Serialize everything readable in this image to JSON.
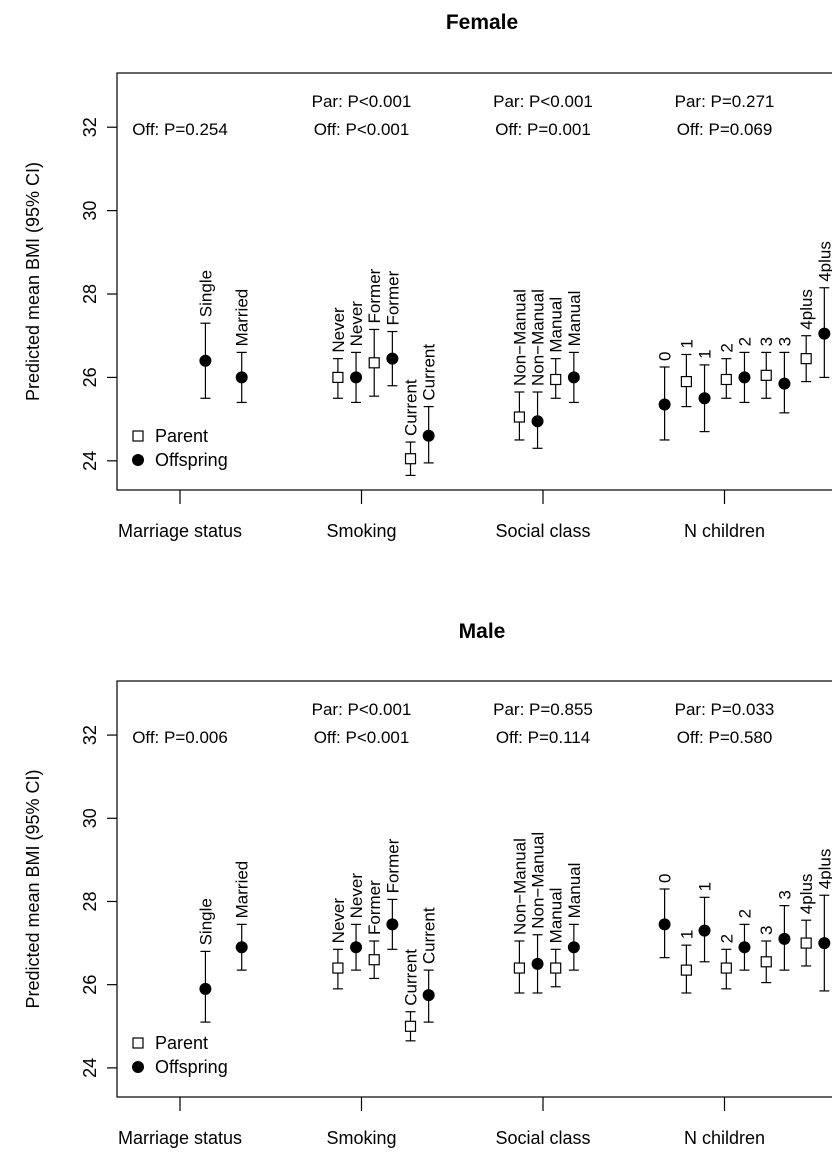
{
  "figure": {
    "ylabel": "Predicted mean BMI (95% CI)",
    "yticks": [
      "24",
      "26",
      "28",
      "30",
      "32"
    ],
    "groups": [
      "Marriage status",
      "Smoking",
      "Social class",
      "N children"
    ],
    "legend": [
      {
        "label": "Parent",
        "marker": "open-square"
      },
      {
        "label": "Offspring",
        "marker": "filled-circle"
      }
    ],
    "colors": {
      "ink": "#000000",
      "parent_fill": "#ffffff",
      "offspring_fill": "#000000"
    }
  },
  "chart_data": [
    {
      "type": "scatter",
      "title": "Female",
      "ylabel": "Predicted mean BMI (95% CI)",
      "ylim": [
        23.3,
        33.3
      ],
      "grid": false,
      "legend_position": "bottom-left",
      "groups": [
        "Marriage status",
        "Smoking",
        "Social class",
        "N children"
      ],
      "pvalues": [
        {
          "group": "Marriage status",
          "par": "",
          "off": "Off: P=0.254"
        },
        {
          "group": "Smoking",
          "par": "Par: P<0.001",
          "off": "Off: P<0.001"
        },
        {
          "group": "Social class",
          "par": "Par: P<0.001",
          "off": "Off: P=0.001"
        },
        {
          "group": "N children",
          "par": "Par: P=0.271",
          "off": "Off: P=0.069"
        }
      ],
      "points": [
        {
          "group": "Marriage status",
          "label": "Single",
          "series": "Offspring",
          "x": 1.14,
          "y": 26.4,
          "lo": 25.5,
          "hi": 27.3
        },
        {
          "group": "Marriage status",
          "label": "Married",
          "series": "Offspring",
          "x": 1.34,
          "y": 26.0,
          "lo": 25.4,
          "hi": 26.6
        },
        {
          "group": "Smoking",
          "label": "Never",
          "series": "Parent",
          "x": 1.87,
          "y": 26.0,
          "lo": 25.5,
          "hi": 26.45
        },
        {
          "group": "Smoking",
          "label": "Never",
          "series": "Offspring",
          "x": 1.97,
          "y": 26.0,
          "lo": 25.4,
          "hi": 26.6
        },
        {
          "group": "Smoking",
          "label": "Former",
          "series": "Parent",
          "x": 2.07,
          "y": 26.35,
          "lo": 25.55,
          "hi": 27.15
        },
        {
          "group": "Smoking",
          "label": "Former",
          "series": "Offspring",
          "x": 2.17,
          "y": 26.45,
          "lo": 25.8,
          "hi": 27.1
        },
        {
          "group": "Smoking",
          "label": "Current",
          "series": "Parent",
          "x": 2.27,
          "y": 24.05,
          "lo": 23.65,
          "hi": 24.45
        },
        {
          "group": "Smoking",
          "label": "Current",
          "series": "Offspring",
          "x": 2.37,
          "y": 24.6,
          "lo": 23.95,
          "hi": 25.3
        },
        {
          "group": "Social class",
          "label": "Non−Manual",
          "series": "Parent",
          "x": 2.87,
          "y": 25.05,
          "lo": 24.5,
          "hi": 25.65
        },
        {
          "group": "Social class",
          "label": "Non−Manual",
          "series": "Offspring",
          "x": 2.97,
          "y": 24.95,
          "lo": 24.3,
          "hi": 25.65
        },
        {
          "group": "Social class",
          "label": "Manual",
          "series": "Parent",
          "x": 3.07,
          "y": 25.95,
          "lo": 25.5,
          "hi": 26.45
        },
        {
          "group": "Social class",
          "label": "Manual",
          "series": "Offspring",
          "x": 3.17,
          "y": 26.0,
          "lo": 25.4,
          "hi": 26.6
        },
        {
          "group": "N children",
          "label": "0",
          "series": "Offspring",
          "x": 3.67,
          "y": 25.35,
          "lo": 24.5,
          "hi": 26.25
        },
        {
          "group": "N children",
          "label": "1",
          "series": "Parent",
          "x": 3.79,
          "y": 25.9,
          "lo": 25.3,
          "hi": 26.55
        },
        {
          "group": "N children",
          "label": "1",
          "series": "Offspring",
          "x": 3.89,
          "y": 25.5,
          "lo": 24.7,
          "hi": 26.3
        },
        {
          "group": "N children",
          "label": "2",
          "series": "Parent",
          "x": 4.01,
          "y": 25.95,
          "lo": 25.5,
          "hi": 26.45
        },
        {
          "group": "N children",
          "label": "2",
          "series": "Offspring",
          "x": 4.11,
          "y": 26.0,
          "lo": 25.4,
          "hi": 26.6
        },
        {
          "group": "N children",
          "label": "3",
          "series": "Parent",
          "x": 4.23,
          "y": 26.05,
          "lo": 25.5,
          "hi": 26.6
        },
        {
          "group": "N children",
          "label": "3",
          "series": "Offspring",
          "x": 4.33,
          "y": 25.85,
          "lo": 25.15,
          "hi": 26.6
        },
        {
          "group": "N children",
          "label": "4plus",
          "series": "Parent",
          "x": 4.45,
          "y": 26.45,
          "lo": 25.9,
          "hi": 27.0
        },
        {
          "group": "N children",
          "label": "4plus",
          "series": "Offspring",
          "x": 4.55,
          "y": 27.05,
          "lo": 26.0,
          "hi": 28.15
        }
      ]
    },
    {
      "type": "scatter",
      "title": "Male",
      "ylabel": "Predicted mean BMI (95% CI)",
      "ylim": [
        23.3,
        33.3
      ],
      "grid": false,
      "legend_position": "bottom-left",
      "groups": [
        "Marriage status",
        "Smoking",
        "Social class",
        "N children"
      ],
      "pvalues": [
        {
          "group": "Marriage status",
          "par": "",
          "off": "Off: P=0.006"
        },
        {
          "group": "Smoking",
          "par": "Par: P<0.001",
          "off": "Off: P<0.001"
        },
        {
          "group": "Social class",
          "par": "Par: P=0.855",
          "off": "Off: P=0.114"
        },
        {
          "group": "N children",
          "par": "Par: P=0.033",
          "off": "Off: P=0.580"
        }
      ],
      "points": [
        {
          "group": "Marriage status",
          "label": "Single",
          "series": "Offspring",
          "x": 1.14,
          "y": 25.9,
          "lo": 25.1,
          "hi": 26.8
        },
        {
          "group": "Marriage status",
          "label": "Married",
          "series": "Offspring",
          "x": 1.34,
          "y": 26.9,
          "lo": 26.35,
          "hi": 27.45
        },
        {
          "group": "Smoking",
          "label": "Never",
          "series": "Parent",
          "x": 1.87,
          "y": 26.4,
          "lo": 25.9,
          "hi": 26.85
        },
        {
          "group": "Smoking",
          "label": "Never",
          "series": "Offspring",
          "x": 1.97,
          "y": 26.9,
          "lo": 26.35,
          "hi": 27.45
        },
        {
          "group": "Smoking",
          "label": "Former",
          "series": "Parent",
          "x": 2.07,
          "y": 26.6,
          "lo": 26.15,
          "hi": 27.05
        },
        {
          "group": "Smoking",
          "label": "Former",
          "series": "Offspring",
          "x": 2.17,
          "y": 27.45,
          "lo": 26.85,
          "hi": 28.05
        },
        {
          "group": "Smoking",
          "label": "Current",
          "series": "Parent",
          "x": 2.27,
          "y": 25.0,
          "lo": 24.65,
          "hi": 25.35
        },
        {
          "group": "Smoking",
          "label": "Current",
          "series": "Offspring",
          "x": 2.37,
          "y": 25.75,
          "lo": 25.1,
          "hi": 26.35
        },
        {
          "group": "Social class",
          "label": "Non−Manual",
          "series": "Parent",
          "x": 2.87,
          "y": 26.4,
          "lo": 25.8,
          "hi": 27.05
        },
        {
          "group": "Social class",
          "label": "Non−Manual",
          "series": "Offspring",
          "x": 2.97,
          "y": 26.5,
          "lo": 25.8,
          "hi": 27.2
        },
        {
          "group": "Social class",
          "label": "Manual",
          "series": "Parent",
          "x": 3.07,
          "y": 26.4,
          "lo": 25.95,
          "hi": 26.85
        },
        {
          "group": "Social class",
          "label": "Manual",
          "series": "Offspring",
          "x": 3.17,
          "y": 26.9,
          "lo": 26.35,
          "hi": 27.45
        },
        {
          "group": "N children",
          "label": "0",
          "series": "Offspring",
          "x": 3.67,
          "y": 27.45,
          "lo": 26.65,
          "hi": 28.3
        },
        {
          "group": "N children",
          "label": "1",
          "series": "Parent",
          "x": 3.79,
          "y": 26.35,
          "lo": 25.8,
          "hi": 26.95
        },
        {
          "group": "N children",
          "label": "1",
          "series": "Offspring",
          "x": 3.89,
          "y": 27.3,
          "lo": 26.55,
          "hi": 28.1
        },
        {
          "group": "N children",
          "label": "2",
          "series": "Parent",
          "x": 4.01,
          "y": 26.4,
          "lo": 25.9,
          "hi": 26.85
        },
        {
          "group": "N children",
          "label": "2",
          "series": "Offspring",
          "x": 4.11,
          "y": 26.9,
          "lo": 26.35,
          "hi": 27.45
        },
        {
          "group": "N children",
          "label": "3",
          "series": "Parent",
          "x": 4.23,
          "y": 26.55,
          "lo": 26.05,
          "hi": 27.05
        },
        {
          "group": "N children",
          "label": "3",
          "series": "Offspring",
          "x": 4.33,
          "y": 27.1,
          "lo": 26.35,
          "hi": 27.9
        },
        {
          "group": "N children",
          "label": "4plus",
          "series": "Parent",
          "x": 4.45,
          "y": 27.0,
          "lo": 26.45,
          "hi": 27.55
        },
        {
          "group": "N children",
          "label": "4plus",
          "series": "Offspring",
          "x": 4.55,
          "y": 27.0,
          "lo": 25.85,
          "hi": 28.15
        }
      ]
    }
  ]
}
